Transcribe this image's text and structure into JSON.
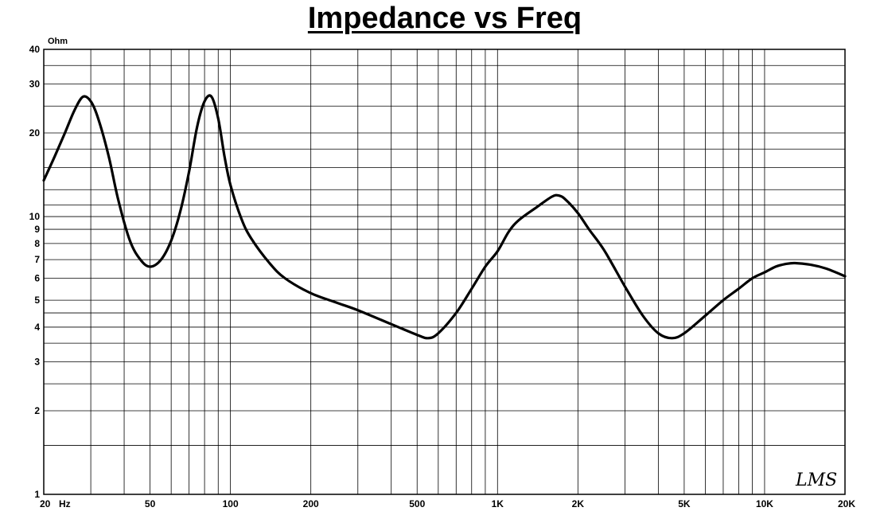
{
  "chart_data": {
    "type": "line",
    "title": "Impedance vs Freq",
    "ylabel": "Ohm",
    "x_unit": "Hz",
    "x_scale": "log",
    "y_scale": "log",
    "xlim": [
      20,
      20000
    ],
    "ylim": [
      1,
      40
    ],
    "grid": true,
    "x_ticks": [
      {
        "value": 20,
        "label": "20"
      },
      {
        "value": 50,
        "label": "50"
      },
      {
        "value": 100,
        "label": "100"
      },
      {
        "value": 200,
        "label": "200"
      },
      {
        "value": 500,
        "label": "500"
      },
      {
        "value": 1000,
        "label": "1K"
      },
      {
        "value": 2000,
        "label": "2K"
      },
      {
        "value": 5000,
        "label": "5K"
      },
      {
        "value": 10000,
        "label": "10K"
      },
      {
        "value": 20000,
        "label": "20K"
      }
    ],
    "y_ticks": [
      {
        "value": 1,
        "label": "1"
      },
      {
        "value": 2,
        "label": "2"
      },
      {
        "value": 3,
        "label": "3"
      },
      {
        "value": 4,
        "label": "4"
      },
      {
        "value": 5,
        "label": "5"
      },
      {
        "value": 6,
        "label": "6"
      },
      {
        "value": 7,
        "label": "7"
      },
      {
        "value": 8,
        "label": "8"
      },
      {
        "value": 9,
        "label": "9"
      },
      {
        "value": 10,
        "label": "10"
      },
      {
        "value": 20,
        "label": "20"
      },
      {
        "value": 30,
        "label": "30"
      },
      {
        "value": 40,
        "label": "40"
      }
    ],
    "series": [
      {
        "color": "#000000",
        "points": [
          [
            20,
            13.5
          ],
          [
            22,
            16.5
          ],
          [
            24,
            20
          ],
          [
            26,
            24
          ],
          [
            28,
            27
          ],
          [
            30,
            26
          ],
          [
            32,
            22.5
          ],
          [
            35,
            16.5
          ],
          [
            38,
            11.5
          ],
          [
            42,
            8.2
          ],
          [
            46,
            7.0
          ],
          [
            50,
            6.6
          ],
          [
            55,
            7.0
          ],
          [
            60,
            8.2
          ],
          [
            65,
            10.5
          ],
          [
            70,
            14.5
          ],
          [
            75,
            21
          ],
          [
            80,
            26
          ],
          [
            85,
            27
          ],
          [
            90,
            22.5
          ],
          [
            95,
            16.5
          ],
          [
            100,
            13
          ],
          [
            110,
            9.8
          ],
          [
            120,
            8.3
          ],
          [
            140,
            6.8
          ],
          [
            160,
            6.0
          ],
          [
            200,
            5.3
          ],
          [
            250,
            4.9
          ],
          [
            300,
            4.6
          ],
          [
            400,
            4.1
          ],
          [
            500,
            3.75
          ],
          [
            550,
            3.65
          ],
          [
            600,
            3.8
          ],
          [
            700,
            4.5
          ],
          [
            800,
            5.5
          ],
          [
            900,
            6.6
          ],
          [
            1000,
            7.5
          ],
          [
            1100,
            8.8
          ],
          [
            1200,
            9.7
          ],
          [
            1400,
            10.8
          ],
          [
            1600,
            11.8
          ],
          [
            1700,
            11.9
          ],
          [
            1800,
            11.5
          ],
          [
            2000,
            10.3
          ],
          [
            2200,
            9.0
          ],
          [
            2500,
            7.6
          ],
          [
            3000,
            5.6
          ],
          [
            3500,
            4.4
          ],
          [
            4000,
            3.8
          ],
          [
            4500,
            3.65
          ],
          [
            5000,
            3.8
          ],
          [
            6000,
            4.4
          ],
          [
            7000,
            5.0
          ],
          [
            8000,
            5.5
          ],
          [
            9000,
            6.0
          ],
          [
            10000,
            6.3
          ],
          [
            11000,
            6.6
          ],
          [
            12000,
            6.75
          ],
          [
            13000,
            6.8
          ],
          [
            15000,
            6.7
          ],
          [
            17000,
            6.5
          ],
          [
            20000,
            6.1
          ]
        ]
      }
    ]
  },
  "watermark": "LMS"
}
